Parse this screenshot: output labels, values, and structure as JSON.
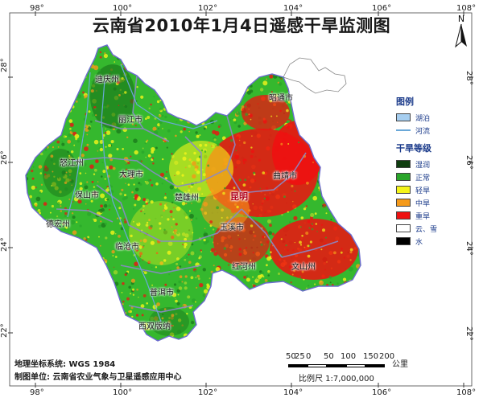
{
  "title": "云南省2010年1月4日遥感干旱监测图",
  "graticule": {
    "top": [
      "98°",
      "100°",
      "102°",
      "104°",
      "106°",
      "108°"
    ],
    "bottom": [
      "98°",
      "100°",
      "102°",
      "104°",
      "106°",
      "108°"
    ],
    "left": [
      "28°",
      "26°",
      "24°",
      "22°"
    ],
    "right": [
      "28°",
      "26°",
      "24°",
      "22°"
    ]
  },
  "north_label": "N",
  "cities": [
    {
      "name": "迪庆州"
    },
    {
      "name": "丽江市"
    },
    {
      "name": "昭通市"
    },
    {
      "name": "怒江州"
    },
    {
      "name": "大理市"
    },
    {
      "name": "曲靖市"
    },
    {
      "name": "楚雄州"
    },
    {
      "name": "昆明",
      "capital": true
    },
    {
      "name": "保山市"
    },
    {
      "name": "德宏州"
    },
    {
      "name": "玉溪市"
    },
    {
      "name": "临沧市"
    },
    {
      "name": "红河州"
    },
    {
      "name": "文山州"
    },
    {
      "name": "普洱市"
    },
    {
      "name": "西双版纳"
    }
  ],
  "legend": {
    "title": "图例",
    "features": [
      {
        "label": "湖泊",
        "color": "#a6cef0"
      },
      {
        "label": "河流",
        "color": "#6aa8d8"
      }
    ],
    "drought_title": "干旱等级",
    "levels": [
      {
        "label": "湿润",
        "color": "#0f3d0f"
      },
      {
        "label": "正常",
        "color": "#2aa62a"
      },
      {
        "label": "轻旱",
        "color": "#f5f51a"
      },
      {
        "label": "中旱",
        "color": "#f59a1a"
      },
      {
        "label": "重旱",
        "color": "#ee1111"
      },
      {
        "label": "云、雪",
        "color": "#ffffff"
      },
      {
        "label": "水",
        "color": "#000000"
      }
    ]
  },
  "footer": {
    "coord_system": "地理坐标系统: WGS 1984",
    "producer": "制图单位: 云南省农业气象与卫星遥感应用中心"
  },
  "scale": {
    "ticks": [
      "50",
      "25",
      "0",
      "50",
      "100",
      "150",
      "200"
    ],
    "unit": "公里",
    "ratio": "比例尺 1:7,000,000"
  }
}
